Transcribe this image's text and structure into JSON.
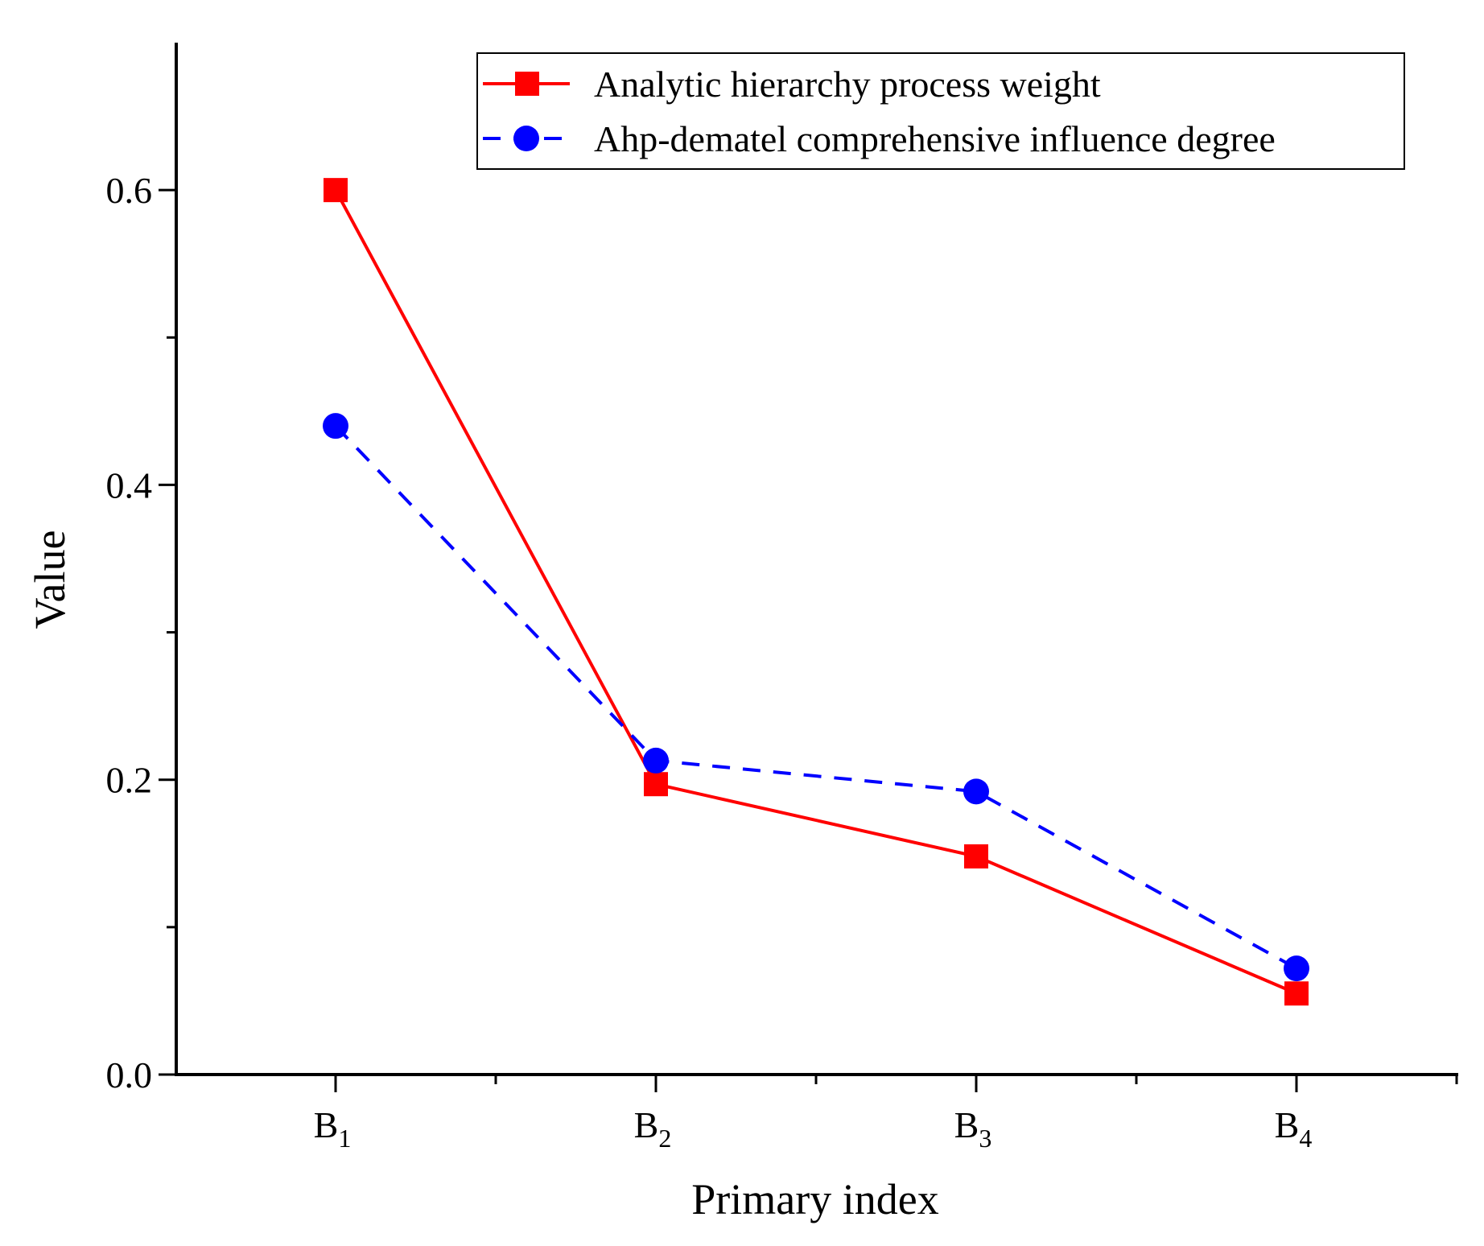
{
  "chart_data": {
    "type": "line",
    "xlabel": "Primary index",
    "ylabel": "Value",
    "categories": [
      {
        "base": "B",
        "sub": "1"
      },
      {
        "base": "B",
        "sub": "2"
      },
      {
        "base": "B",
        "sub": "3"
      },
      {
        "base": "B",
        "sub": "4"
      }
    ],
    "ylim": [
      0,
      0.7
    ],
    "y_ticks": [
      "0.0",
      "0.2",
      "0.4",
      "0.6"
    ],
    "grid": false,
    "legend_position": "top-right",
    "series": [
      {
        "name": "Analytic hierarchy process weight",
        "values": [
          0.6,
          0.197,
          0.148,
          0.055
        ],
        "color": "#ff0000",
        "marker": "square",
        "line_style": "solid"
      },
      {
        "name": "Ahp-dematel comprehensive influence degree",
        "values": [
          0.44,
          0.213,
          0.192,
          0.072
        ],
        "color": "#0000ff",
        "marker": "circle",
        "line_style": "dashed"
      }
    ]
  }
}
